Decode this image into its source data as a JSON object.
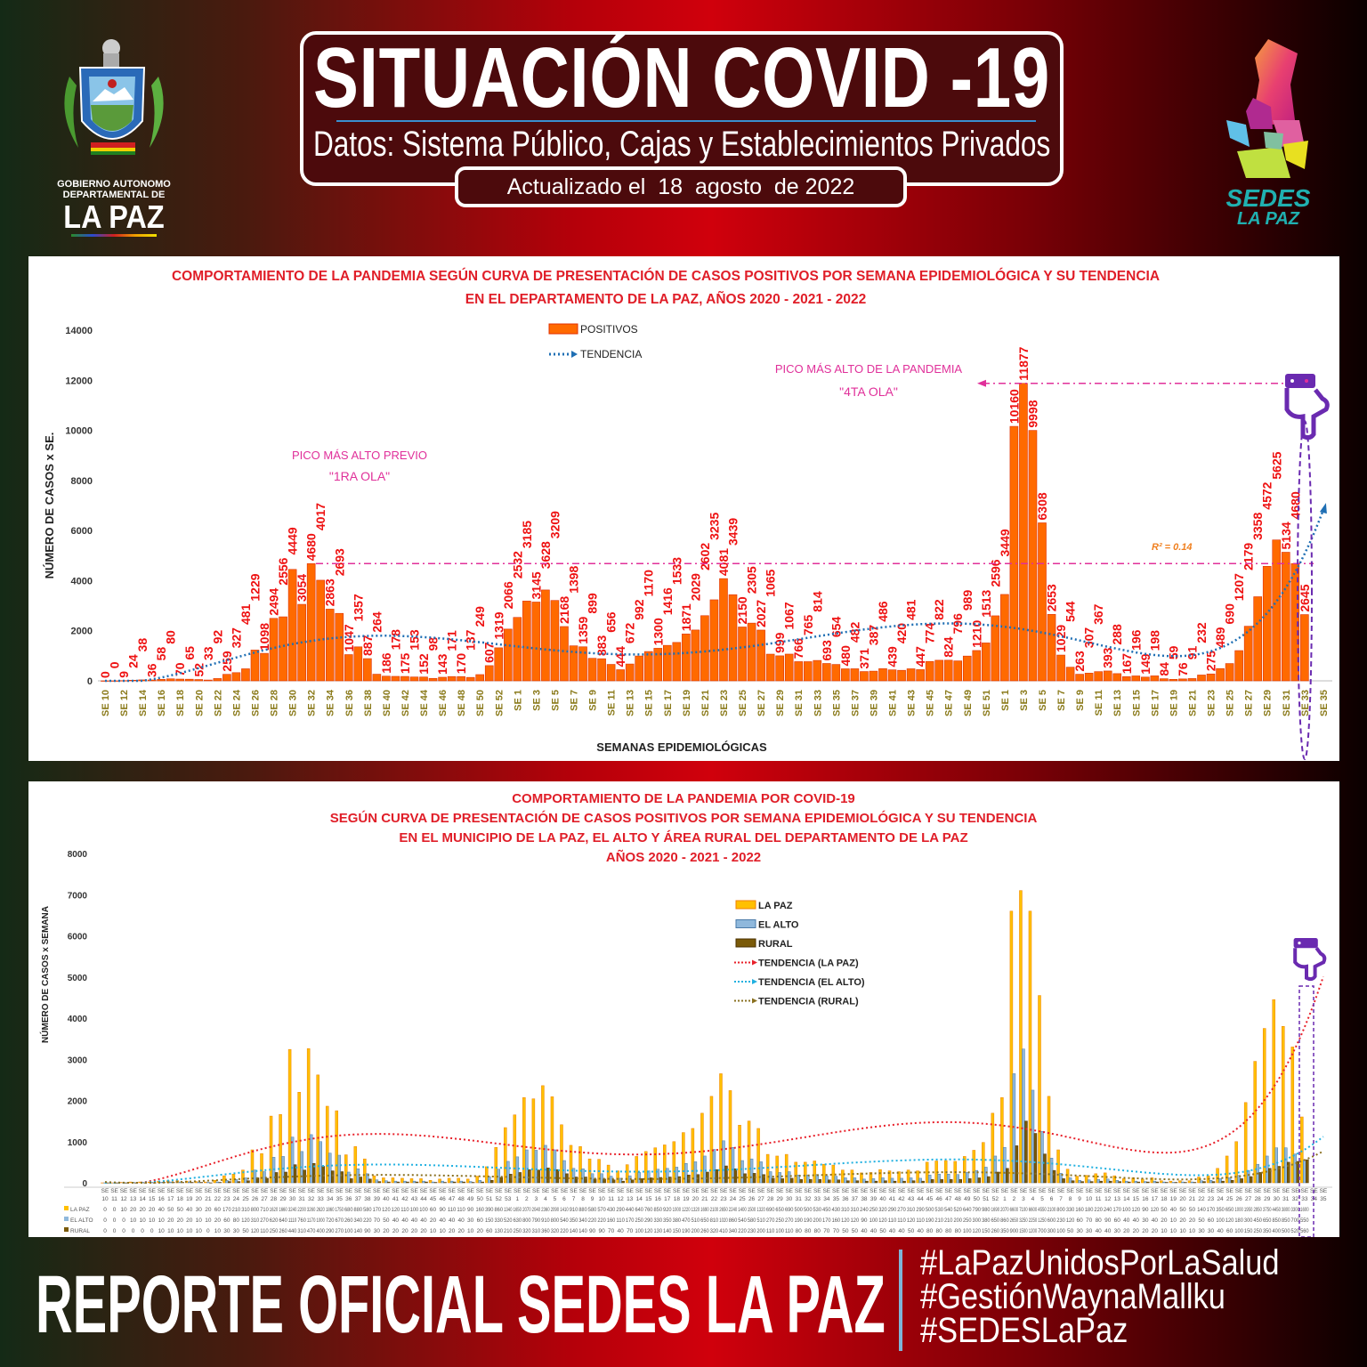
{
  "header": {
    "title": "SITUACIÓN COVID -19",
    "subtitle": "Datos: Sistema Público, Cajas y Establecimientos Privados",
    "updated": "Actualizado el  18  agosto  de 2022"
  },
  "logos": {
    "left": {
      "line1": "GOBIERNO AUTONOMO",
      "line2": "DEPARTAMENTAL DE",
      "line3": "LA PAZ",
      "icon": "coat-of-arms"
    },
    "right": {
      "line1": "SEDES",
      "line2": "LA PAZ",
      "icon": "department-map"
    }
  },
  "footer": {
    "title": "REPORTE OFICIAL SEDES LA PAZ",
    "hashtags": [
      "#LaPazUnidosPorLaSalud",
      "#GestiónWaynaMallku",
      "#SEDESLaPaz"
    ]
  },
  "colors": {
    "positivos": "#ff6a00",
    "tendencia": "#1f6fb4",
    "annotation": "#e0309a",
    "title_red": "#e01e28",
    "la_paz": "#ffc000",
    "el_alto": "#8fb8dc",
    "rural": "#7a5a08",
    "trend_la_paz": "#e8202a",
    "trend_el_alto": "#20b0e0",
    "trend_rural": "#8a7020",
    "pointer": "#6a2ab0"
  },
  "chart_data": [
    {
      "type": "bar",
      "title_lines": [
        "COMPORTAMIENTO DE LA PANDEMIA SEGÚN CURVA DE PRESENTACIÓN DE CASOS POSITIVOS POR SEMANA EPIDEMIOLÓGICA Y SU TENDENCIA",
        "EN EL DEPARTAMENTO DE LA PAZ, AÑOS 2020 - 2021 - 2022"
      ],
      "xlabel": "SEMANAS EPIDEMIOLÓGICAS",
      "ylabel": "NÚMERO DE CASOS x SE.",
      "ylim": [
        0,
        14000
      ],
      "yticks": [
        0,
        2000,
        4000,
        6000,
        8000,
        10000,
        12000,
        14000
      ],
      "x_prefix": "SE",
      "weeks": [
        10,
        11,
        12,
        13,
        14,
        15,
        16,
        17,
        18,
        19,
        20,
        21,
        22,
        23,
        24,
        25,
        26,
        27,
        28,
        29,
        30,
        31,
        32,
        33,
        34,
        35,
        36,
        37,
        38,
        39,
        40,
        41,
        42,
        43,
        44,
        45,
        46,
        47,
        48,
        49,
        50,
        51,
        52,
        53,
        1,
        2,
        3,
        4,
        5,
        6,
        7,
        8,
        9,
        10,
        11,
        12,
        13,
        14,
        15,
        16,
        17,
        18,
        19,
        20,
        21,
        22,
        23,
        24,
        25,
        26,
        27,
        28,
        29,
        30,
        31,
        32,
        33,
        34,
        35,
        36,
        37,
        38,
        39,
        40,
        41,
        42,
        43,
        44,
        45,
        46,
        47,
        48,
        49,
        50,
        51,
        52,
        1,
        2,
        3,
        4,
        5,
        6,
        7,
        8,
        9,
        10,
        11,
        12,
        13,
        14,
        15,
        16,
        17,
        18,
        19,
        20,
        21,
        22,
        23,
        24,
        25,
        26,
        27,
        28,
        29,
        30,
        31,
        32,
        33,
        34,
        35
      ],
      "legend": {
        "placement": "top-center",
        "entries": [
          "POSITIVOS",
          "TENDENCIA"
        ]
      },
      "series": [
        {
          "name": "POSITIVOS",
          "values": [
            0,
            0,
            9,
            24,
            38,
            36,
            58,
            80,
            70,
            65,
            52,
            33,
            92,
            259,
            327,
            481,
            1229,
            1098,
            2494,
            2556,
            4449,
            3054,
            4680,
            4017,
            2863,
            2693,
            1047,
            1357,
            887,
            264,
            186,
            178,
            175,
            153,
            152,
            98,
            143,
            171,
            170,
            137,
            249,
            607,
            1319,
            2066,
            2532,
            3185,
            3145,
            3628,
            3209,
            2168,
            1398,
            1359,
            899,
            883,
            656,
            444,
            672,
            992,
            1170,
            1300,
            1416,
            1533,
            1871,
            2029,
            2602,
            3235,
            4081,
            3439,
            2150,
            2305,
            2027,
            1065,
            999,
            1067,
            766,
            765,
            814,
            693,
            654,
            480,
            482,
            371,
            387,
            486,
            439,
            420,
            481,
            447,
            774,
            822,
            824,
            796,
            989,
            1210,
            1513,
            2596,
            3449,
            10160,
            11877,
            9998,
            6308,
            2653,
            1029,
            544,
            263,
            307,
            367,
            393,
            288,
            167,
            196,
            149,
            198,
            84,
            59,
            76,
            91,
            232,
            275,
            489,
            690,
            1207,
            2179,
            3358,
            4572,
            5625,
            5134,
            4680,
            2645,
            null,
            null
          ]
        }
      ],
      "trendline": {
        "name": "TENDENCIA",
        "type": "polynomial",
        "r2_label": "R² = 0.14"
      },
      "annotations": [
        {
          "line1": "PICO MÁS ALTO PREVIO",
          "line2": "\"1RA OLA\"",
          "value": 4680
        },
        {
          "line1": "PICO MÁS ALTO DE LA PANDEMIA",
          "line2": "\"4TA OLA\"",
          "value": 11877
        }
      ]
    },
    {
      "type": "bar",
      "title_lines": [
        "COMPORTAMIENTO DE LA PANDEMIA POR COVID-19",
        "SEGÚN CURVA DE PRESENTACIÓN DE CASOS POSITIVOS POR SEMANA EPIDEMIOLÓGICA Y SU TENDENCIA",
        "EN EL  MUNICIPIO DE LA PAZ, EL ALTO Y ÁREA RURAL DEL DEPARTAMENTO DE LA PAZ",
        "AÑOS 2020 - 2021 - 2022"
      ],
      "ylabel": "NÚMERO DE CASOS x SEMANA",
      "ylim": [
        0,
        8000
      ],
      "yticks": [
        0,
        1000,
        2000,
        3000,
        4000,
        5000,
        6000,
        7000,
        8000
      ],
      "legend": {
        "placement": "top-center",
        "entries": [
          "LA PAZ",
          "EL ALTO",
          "RURAL",
          "TENDENCIA (LA PAZ)",
          "TENDENCIA (EL ALTO)",
          "TENDENCIA (RURAL)"
        ]
      },
      "series": [
        {
          "name": "LA PAZ",
          "table_label": "LA PAZ",
          "values": [
            0,
            0,
            10,
            20,
            20,
            20,
            40,
            50,
            50,
            40,
            30,
            20,
            60,
            170,
            210,
            310,
            800,
            710,
            1620,
            1660,
            3240,
            2200,
            3260,
            2620,
            1860,
            1750,
            680,
            880,
            580,
            170,
            120,
            120,
            110,
            100,
            100,
            60,
            90,
            110,
            110,
            90,
            160,
            390,
            860,
            1340,
            1650,
            2070,
            2040,
            2360,
            2090,
            1410,
            910,
            880,
            580,
            570,
            430,
            290,
            440,
            640,
            760,
            850,
            920,
            1000,
            1220,
            1320,
            1690,
            2100,
            2650,
            2240,
            1400,
            1500,
            1320,
            690,
            650,
            690,
            500,
            500,
            530,
            450,
            430,
            310,
            310,
            240,
            250,
            320,
            290,
            270,
            310,
            290,
            500,
            530,
            540,
            520,
            640,
            790,
            980,
            1690,
            2070,
            6600,
            7100,
            6600,
            4550,
            2100,
            800,
            330,
            160,
            180,
            220,
            240,
            170,
            100,
            120,
            90,
            120,
            50,
            40,
            50,
            50,
            140,
            170,
            350,
            650,
            1000,
            1950,
            2950,
            3750,
            4450,
            3800,
            3300,
            1600,
            null,
            null
          ]
        },
        {
          "name": "EL ALTO",
          "table_label": "EL ALTO",
          "values": [
            0,
            0,
            0,
            10,
            10,
            10,
            10,
            20,
            20,
            20,
            10,
            10,
            20,
            60,
            80,
            120,
            310,
            270,
            620,
            640,
            1110,
            760,
            1170,
            1000,
            720,
            670,
            260,
            340,
            220,
            70,
            50,
            40,
            40,
            40,
            40,
            20,
            40,
            40,
            40,
            30,
            60,
            150,
            330,
            520,
            630,
            800,
            790,
            910,
            800,
            540,
            350,
            340,
            220,
            220,
            160,
            110,
            170,
            250,
            290,
            330,
            350,
            380,
            470,
            510,
            650,
            810,
            1020,
            860,
            540,
            580,
            510,
            270,
            250,
            270,
            190,
            190,
            200,
            170,
            160,
            120,
            120,
            90,
            100,
            120,
            110,
            110,
            120,
            110,
            190,
            210,
            210,
            200,
            250,
            300,
            380,
            650,
            860,
            2650,
            3250,
            2250,
            1250,
            600,
            230,
            120,
            60,
            70,
            80,
            90,
            60,
            40,
            40,
            30,
            40,
            20,
            10,
            20,
            20,
            50,
            60,
            100,
            120,
            180,
            300,
            450,
            650,
            850,
            850,
            700,
            550,
            null,
            null
          ]
        },
        {
          "name": "RURAL",
          "table_label": "RURAL",
          "values": [
            0,
            0,
            0,
            0,
            0,
            0,
            10,
            10,
            10,
            10,
            10,
            0,
            10,
            30,
            30,
            50,
            120,
            110,
            250,
            260,
            440,
            310,
            470,
            400,
            290,
            270,
            100,
            140,
            90,
            30,
            20,
            20,
            20,
            20,
            20,
            10,
            10,
            20,
            20,
            10,
            20,
            60,
            130,
            210,
            250,
            320,
            310,
            360,
            320,
            220,
            140,
            140,
            90,
            90,
            70,
            40,
            70,
            100,
            120,
            130,
            140,
            150,
            190,
            200,
            260,
            320,
            410,
            340,
            220,
            230,
            200,
            110,
            100,
            110,
            80,
            80,
            80,
            70,
            70,
            50,
            50,
            40,
            40,
            50,
            40,
            40,
            50,
            40,
            80,
            80,
            80,
            80,
            100,
            120,
            150,
            260,
            350,
            900,
            1500,
            1200,
            700,
            300,
            100,
            50,
            30,
            30,
            40,
            40,
            30,
            20,
            20,
            20,
            20,
            10,
            10,
            10,
            10,
            30,
            30,
            40,
            60,
            100,
            150,
            250,
            350,
            400,
            500,
            520,
            560,
            null,
            null
          ]
        }
      ],
      "trendlines": [
        {
          "name": "TENDENCIA (LA PAZ)",
          "type": "polynomial"
        },
        {
          "name": "TENDENCIA (EL ALTO)",
          "type": "polynomial"
        },
        {
          "name": "TENDENCIA (RURAL)",
          "type": "polynomial"
        }
      ]
    }
  ]
}
